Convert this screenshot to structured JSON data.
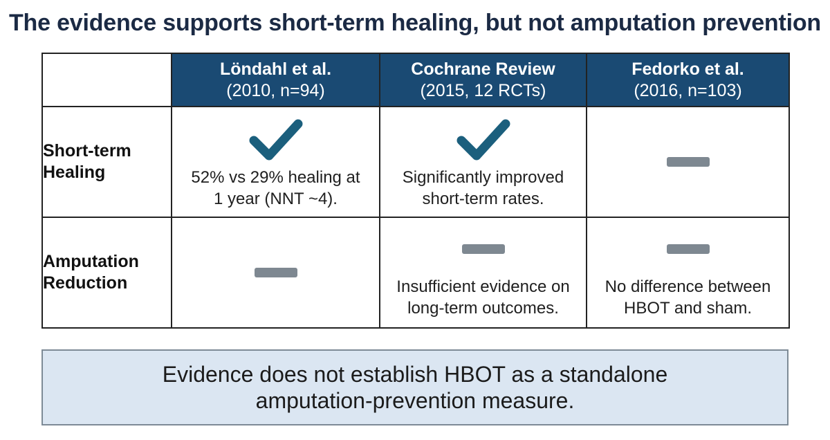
{
  "title": "The evidence supports short-term healing, but not amputation prevention",
  "columns": [
    {
      "name": "Löndahl et al.",
      "meta": "(2010, n=94)"
    },
    {
      "name": "Cochrane Review",
      "meta": "(2015, 12 RCTs)"
    },
    {
      "name": "Fedorko et al.",
      "meta": "(2016, n=103)"
    }
  ],
  "rows": [
    {
      "label_line1": "Short-term",
      "label_line2": "Healing",
      "cells": [
        {
          "icon": "check-icon",
          "line1": "52% vs 29% healing at",
          "line2": "1 year (NNT ~4)."
        },
        {
          "icon": "check-icon",
          "line1": "Significantly improved",
          "line2": "short-term rates."
        },
        {
          "icon": "dash-icon",
          "line1": "",
          "line2": ""
        }
      ]
    },
    {
      "label_line1": "Amputation",
      "label_line2": "Reduction",
      "cells": [
        {
          "icon": "dash-icon",
          "line1": "",
          "line2": ""
        },
        {
          "icon": "dash-icon",
          "line1": "Insufficient evidence on",
          "line2": "long-term outcomes."
        },
        {
          "icon": "dash-icon",
          "line1": "No difference between",
          "line2": "HBOT and sham."
        }
      ]
    }
  ],
  "summary": {
    "line1": "Evidence does not establish HBOT as a standalone",
    "line2": "amputation-prevention measure."
  },
  "colors": {
    "header_bg": "#1a4a73",
    "check": "#1b5f7d",
    "dash": "#7e8891",
    "summary_bg": "#dbe6f2"
  }
}
